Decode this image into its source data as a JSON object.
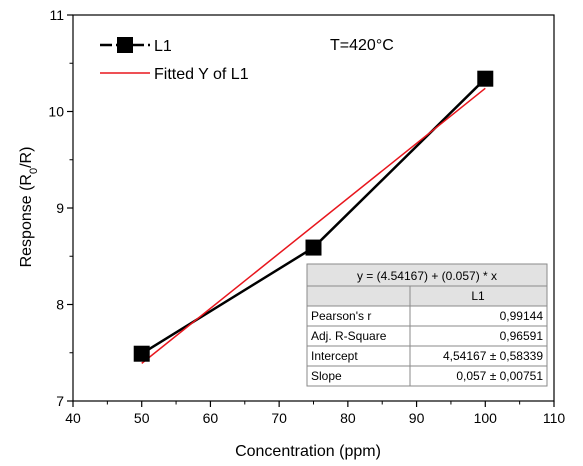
{
  "chart_data": {
    "type": "scatter",
    "title": "",
    "annotation": "T=420°C",
    "xlabel": "Concentration (ppm)",
    "ylabel_main": "Response (R",
    "ylabel_sub": "0",
    "ylabel_tail": "/R)",
    "xlim": [
      40,
      110
    ],
    "ylim": [
      7,
      11
    ],
    "xticks": [
      40,
      50,
      60,
      70,
      80,
      90,
      100,
      110
    ],
    "yticks": [
      7,
      8,
      9,
      10,
      11
    ],
    "grid": false,
    "legend_position": "top-left",
    "series": [
      {
        "name": "L1",
        "style": "line+square-markers",
        "color": "#000000",
        "x": [
          50,
          75,
          100
        ],
        "y": [
          7.49,
          8.59,
          10.34
        ]
      },
      {
        "name": "Fitted Y of L1",
        "style": "line",
        "color": "#e8161d",
        "x": [
          50,
          100
        ],
        "y": [
          7.39,
          10.24
        ]
      }
    ],
    "fit_table": {
      "equation": "y = (4.54167) + (0.057) * x",
      "column_header": "L1",
      "rows": [
        {
          "label": "Pearson's r",
          "value": "0,99144"
        },
        {
          "label": "Adj. R-Square",
          "value": "0,96591"
        },
        {
          "label": "Intercept",
          "value": "4,54167 ± 0,58339"
        },
        {
          "label": "Slope",
          "value": "0,057 ± 0,00751"
        }
      ]
    }
  }
}
